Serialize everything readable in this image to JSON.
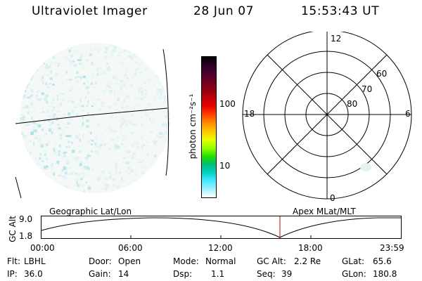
{
  "header": {
    "title": "Ultraviolet Imager",
    "date": "28 Jun 07",
    "time": "15:53:43 UT"
  },
  "colorbar": {
    "unit_label": "photon cm⁻²s⁻¹",
    "ticks": [
      "100",
      "10"
    ],
    "colors": [
      "#000000",
      "#2a0026",
      "#4b0030",
      "#700020",
      "#960012",
      "#c0000a",
      "#e80000",
      "#ff4000",
      "#ff8c00",
      "#ffc400",
      "#e8ff00",
      "#90ff00",
      "#20e000",
      "#00c070",
      "#00d0c0",
      "#40e8ff",
      "#a0f0ff",
      "#ffffff"
    ]
  },
  "polar_grid": {
    "mlt_labels": [
      "12",
      "18",
      "6",
      "0"
    ],
    "mlat_labels": [
      "60",
      "70",
      "80"
    ]
  },
  "timeline": {
    "y_axis_label": "GC Alt",
    "y_ticks": [
      "9.0",
      "1.8"
    ],
    "left_label": "Geographic Lat/Lon",
    "right_label": "Apex MLat/MLT",
    "time_ticks": [
      "00:00",
      "06:00",
      "12:00",
      "18:00",
      "23:59"
    ],
    "marker_color": "#b01010"
  },
  "status": {
    "flt_label": "Flt:",
    "flt_value": "LBHL",
    "door_label": "Door:",
    "door_value": "Open",
    "mode_label": "Mode:",
    "mode_value": "Normal",
    "gcalt_label": "GC Alt:",
    "gcalt_value": "2.2 Re",
    "glat_label": "GLat:",
    "glat_value": "65.6",
    "ip_label": "IP:",
    "ip_value": "36.0",
    "gain_label": "Gain:",
    "gain_value": "14",
    "dsp_label": "Dsp:",
    "dsp_value": "1.1",
    "seq_label": "Seq:",
    "seq_value": "39",
    "glon_label": "GLon:",
    "glon_value": "180.8"
  }
}
